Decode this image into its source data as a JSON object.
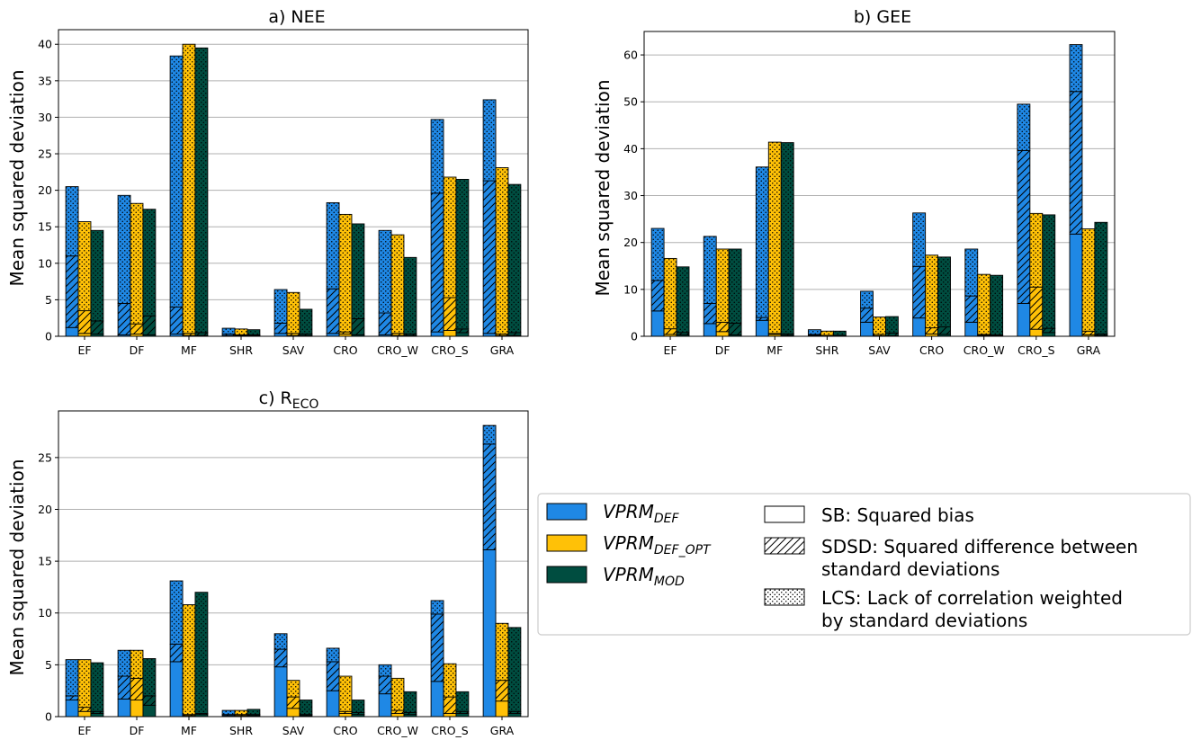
{
  "ylabel": "Mean squared deviation",
  "colors": {
    "def": "#1f88e5",
    "opt": "#ffc107",
    "mod": "#004d40"
  },
  "legend": {
    "models": [
      {
        "key": "def",
        "base": "VPRM",
        "sub": "DEF"
      },
      {
        "key": "opt",
        "base": "VPRM",
        "sub": "DEF_OPT"
      },
      {
        "key": "mod",
        "base": "VPRM",
        "sub": "MOD"
      }
    ],
    "components": [
      {
        "key": "sb",
        "lines": [
          "SB: Squared bias"
        ]
      },
      {
        "key": "sdsd",
        "lines": [
          "SDSD: Squared difference between",
          " standard deviations"
        ]
      },
      {
        "key": "lcs",
        "lines": [
          "LCS: Lack of correlation weighted",
          " by standard deviations"
        ]
      }
    ]
  },
  "chart_data": [
    {
      "type": "bar",
      "stacked": true,
      "title": "a) NEE",
      "title_base": "a) NEE",
      "title_sub": "",
      "ylabel": "Mean squared deviation",
      "categories": [
        "EF",
        "DF",
        "MF",
        "SHR",
        "SAV",
        "CRO",
        "CRO_W",
        "CRO_S",
        "GRA"
      ],
      "ylim": [
        0,
        42
      ],
      "yticks": [
        0,
        5,
        10,
        15,
        20,
        25,
        30,
        35,
        40
      ],
      "grid": "y",
      "series": [
        {
          "name": "VPRM_DEF",
          "key": "def",
          "sb": [
            1.2,
            0.2,
            0.3,
            0.1,
            0.4,
            0.4,
            0.2,
            0.6,
            0.4
          ],
          "sdsd": [
            9.8,
            4.3,
            3.7,
            0.2,
            1.4,
            6.1,
            3.0,
            19.0,
            20.9
          ],
          "lcs": [
            9.5,
            14.8,
            34.4,
            0.8,
            4.6,
            11.8,
            11.3,
            10.1,
            11.1
          ]
        },
        {
          "name": "VPRM_DEF_OPT",
          "key": "opt",
          "sb": [
            0.4,
            0.3,
            0.1,
            0.1,
            0.1,
            0.3,
            0.1,
            0.8,
            0.1
          ],
          "sdsd": [
            3.1,
            1.4,
            0.3,
            0.1,
            0.3,
            0.3,
            0.3,
            4.5,
            0.2
          ],
          "lcs": [
            12.2,
            16.5,
            39.6,
            0.8,
            5.6,
            16.1,
            13.5,
            16.5,
            22.8
          ]
        },
        {
          "name": "VPRM_MOD",
          "key": "mod",
          "sb": [
            0.3,
            0.2,
            0.1,
            0.1,
            0.1,
            0.2,
            0.1,
            0.5,
            0.1
          ],
          "sdsd": [
            1.8,
            2.6,
            0.4,
            0.1,
            0.2,
            2.2,
            0.2,
            0.5,
            0.4
          ],
          "lcs": [
            12.4,
            14.6,
            39.0,
            0.7,
            3.4,
            13.0,
            10.5,
            20.5,
            20.3
          ]
        }
      ]
    },
    {
      "type": "bar",
      "stacked": true,
      "title": "b) GEE",
      "title_base": "b) GEE",
      "title_sub": "",
      "ylabel": "Mean squared deviation",
      "categories": [
        "EF",
        "DF",
        "MF",
        "SHR",
        "SAV",
        "CRO",
        "CRO_W",
        "CRO_S",
        "GRA"
      ],
      "ylim": [
        0,
        65
      ],
      "yticks": [
        0,
        10,
        20,
        30,
        40,
        50,
        60
      ],
      "grid": "y",
      "series": [
        {
          "name": "VPRM_DEF",
          "key": "def",
          "sb": [
            5.4,
            2.7,
            3.4,
            0.2,
            3.0,
            3.9,
            3.0,
            7.0,
            21.8
          ],
          "sdsd": [
            6.5,
            4.3,
            0.6,
            0.2,
            3.0,
            11.0,
            5.6,
            32.6,
            30.4
          ],
          "lcs": [
            11.1,
            14.3,
            32.1,
            1.0,
            3.6,
            11.4,
            10.0,
            9.9,
            10.0
          ]
        },
        {
          "name": "VPRM_DEF_OPT",
          "key": "opt",
          "sb": [
            0.4,
            1.0,
            0.4,
            0.1,
            0.1,
            0.5,
            0.2,
            1.5,
            0.3
          ],
          "sdsd": [
            1.2,
            2.0,
            0.2,
            0.1,
            0.3,
            1.3,
            0.2,
            9.0,
            0.8
          ],
          "lcs": [
            15.0,
            15.6,
            40.8,
            0.9,
            3.7,
            15.5,
            12.8,
            15.7,
            21.8
          ]
        },
        {
          "name": "VPRM_MOD",
          "key": "mod",
          "sb": [
            0.3,
            0.3,
            0.2,
            0.1,
            0.1,
            0.4,
            0.1,
            0.8,
            0.2
          ],
          "sdsd": [
            0.5,
            2.5,
            0.3,
            0.1,
            0.6,
            1.6,
            0.2,
            0.9,
            0.3
          ],
          "lcs": [
            14.0,
            15.8,
            40.8,
            0.9,
            3.5,
            14.9,
            12.7,
            24.2,
            23.8
          ]
        }
      ]
    },
    {
      "type": "bar",
      "stacked": true,
      "title": "c) RECO",
      "title_base": "c) R",
      "title_sub": "ECO",
      "ylabel": "Mean squared deviation",
      "categories": [
        "EF",
        "DF",
        "MF",
        "SHR",
        "SAV",
        "CRO",
        "CRO_W",
        "CRO_S",
        "GRA"
      ],
      "ylim": [
        0,
        29.5
      ],
      "yticks": [
        0,
        5,
        10,
        15,
        20,
        25
      ],
      "grid": "y",
      "series": [
        {
          "name": "VPRM_DEF",
          "key": "def",
          "sb": [
            1.6,
            1.7,
            5.3,
            0.1,
            4.8,
            2.5,
            2.2,
            3.4,
            16.1
          ],
          "sdsd": [
            0.4,
            2.2,
            1.7,
            0.1,
            1.7,
            2.8,
            1.7,
            6.5,
            10.2
          ],
          "lcs": [
            3.5,
            2.5,
            6.1,
            0.4,
            1.5,
            1.3,
            1.1,
            1.3,
            1.8
          ]
        },
        {
          "name": "VPRM_DEF_OPT",
          "key": "opt",
          "sb": [
            0.5,
            1.6,
            0.1,
            0.1,
            0.8,
            0.3,
            0.3,
            0.3,
            1.5
          ],
          "sdsd": [
            0.4,
            2.1,
            0.1,
            0.1,
            1.1,
            0.2,
            0.3,
            1.6,
            2.0
          ],
          "lcs": [
            4.6,
            2.7,
            10.6,
            0.4,
            1.6,
            3.4,
            3.1,
            3.2,
            5.5
          ]
        },
        {
          "name": "VPRM_MOD",
          "key": "mod",
          "sb": [
            0.3,
            1.1,
            0.2,
            0.1,
            0.1,
            0.2,
            0.2,
            0.3,
            0.3
          ],
          "sdsd": [
            0.2,
            0.9,
            0.1,
            0.1,
            0.1,
            0.2,
            0.2,
            0.2,
            0.2
          ],
          "lcs": [
            4.7,
            3.6,
            11.7,
            0.5,
            1.4,
            1.2,
            2.0,
            1.9,
            8.1
          ]
        }
      ]
    }
  ]
}
